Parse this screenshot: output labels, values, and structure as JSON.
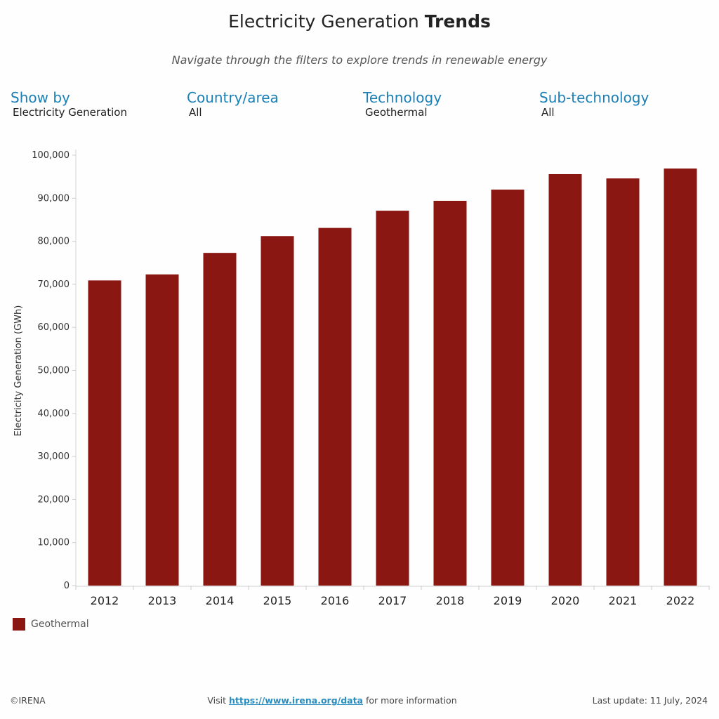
{
  "header": {
    "title_regular": "Electricity Generation",
    "title_bold": "Trends",
    "subtitle": "Navigate through the filters to explore trends in renewable energy"
  },
  "filters": [
    {
      "label": "Show by",
      "value": "Electricity Generation"
    },
    {
      "label": "Country/area",
      "value": "All"
    },
    {
      "label": "Technology",
      "value": "Geothermal"
    },
    {
      "label": "Sub-technology",
      "value": "All"
    }
  ],
  "chart_data": {
    "type": "bar",
    "title": "",
    "xlabel": "",
    "ylabel": "Electricity Generation (GWh)",
    "ylim": [
      0,
      100000
    ],
    "yticks": [
      0,
      10000,
      20000,
      30000,
      40000,
      50000,
      60000,
      70000,
      80000,
      90000,
      100000
    ],
    "ytick_labels": [
      "0",
      "10,000",
      "20,000",
      "30,000",
      "40,000",
      "50,000",
      "60,000",
      "70,000",
      "80,000",
      "90,000",
      "100,000"
    ],
    "categories": [
      "2012",
      "2013",
      "2014",
      "2015",
      "2016",
      "2017",
      "2018",
      "2019",
      "2020",
      "2021",
      "2022"
    ],
    "series": [
      {
        "name": "Geothermal",
        "color": "#8b1713",
        "values": [
          70900,
          72300,
          77300,
          81200,
          83100,
          87100,
          89400,
          92000,
          95600,
          94600,
          96900
        ]
      }
    ],
    "grid": false,
    "legend": "bottom-left"
  },
  "footer": {
    "copyright": "©IRENA",
    "visit_prefix": "Visit ",
    "link": "https://www.irena.org/data",
    "visit_suffix": " for more information",
    "last_update": "Last update: 11 July, 2024"
  }
}
